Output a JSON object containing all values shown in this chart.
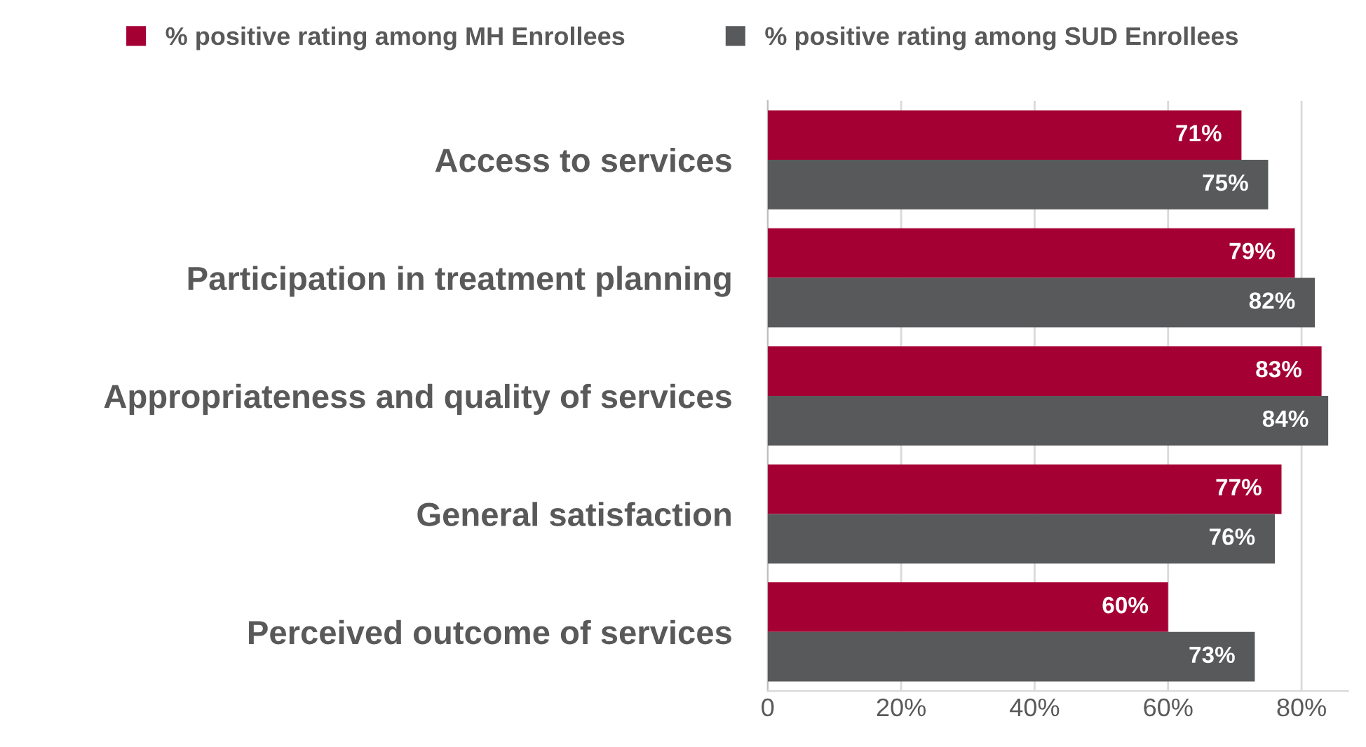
{
  "chart_data": {
    "type": "bar",
    "orientation": "horizontal",
    "categories": [
      "Access to services",
      "Participation in treatment planning",
      "Appropriateness and quality of services",
      "General satisfaction",
      "Perceived outcome of services"
    ],
    "series": [
      {
        "name": "% positive rating among MH Enrollees",
        "color": "#a50034",
        "values": [
          71,
          79,
          83,
          77,
          60
        ],
        "value_labels": [
          "71%",
          "79%",
          "83%",
          "77%",
          "60%"
        ]
      },
      {
        "name": "% positive rating among SUD Enrollees",
        "color": "#58595b",
        "values": [
          75,
          82,
          84,
          76,
          73
        ],
        "value_labels": [
          "75%",
          "82%",
          "84%",
          "76%",
          "73%"
        ]
      }
    ],
    "xlim": [
      0,
      87
    ],
    "xticks": [
      0,
      {
        "value": 20,
        "label": "20%"
      },
      {
        "value": 40,
        "label": "40%"
      },
      {
        "value": 60,
        "label": "60%"
      },
      {
        "value": 80,
        "label": "80%"
      }
    ],
    "grid": "x",
    "legend": "top"
  }
}
